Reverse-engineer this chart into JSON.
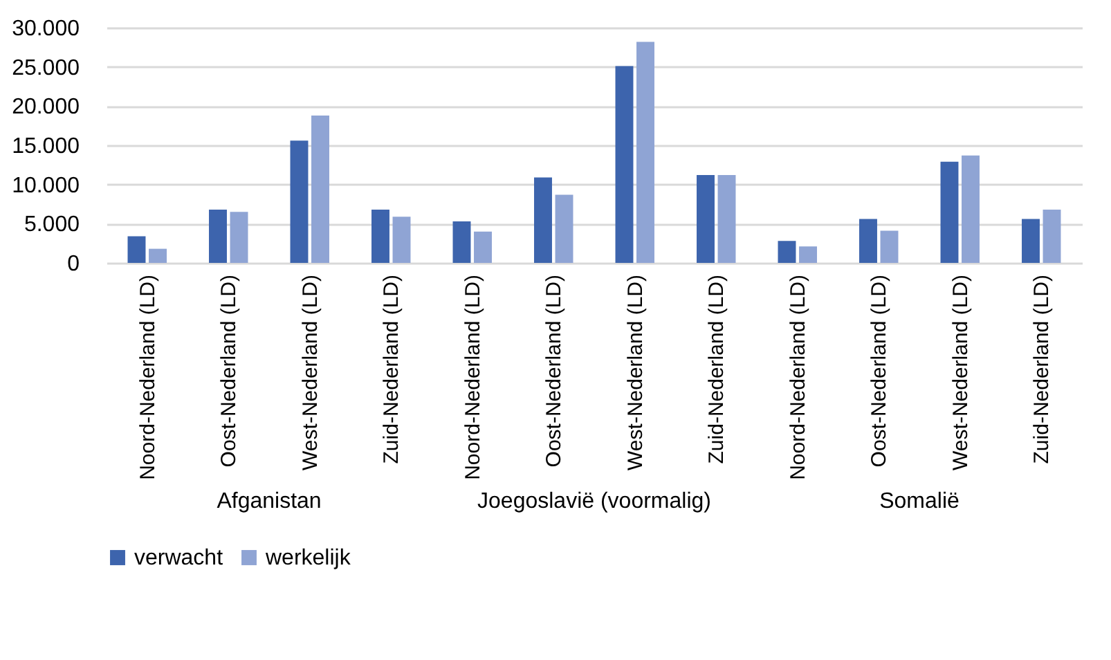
{
  "chart_data": {
    "type": "bar",
    "categories": [
      "Noord-Nederland (LD)",
      "Oost-Nederland (LD)",
      "West-Nederland (LD)",
      "Zuid-Nederland (LD)",
      "Noord-Nederland (LD)",
      "Oost-Nederland (LD)",
      "West-Nederland (LD)",
      "Zuid-Nederland (LD)",
      "Noord-Nederland (LD)",
      "Oost-Nederland (LD)",
      "West-Nederland (LD)",
      "Zuid-Nederland (LD)"
    ],
    "series": [
      {
        "name": "verwacht",
        "color": "#3d64ad",
        "values": [
          3400,
          6800,
          15600,
          6800,
          5300,
          10900,
          25100,
          11200,
          2800,
          5600,
          12900,
          5600
        ]
      },
      {
        "name": "werkelijk",
        "color": "#8fa4d4",
        "values": [
          1800,
          6500,
          18800,
          5900,
          4000,
          8700,
          28200,
          11200,
          2100,
          4100,
          13700,
          6800
        ]
      }
    ],
    "annotations": [
      "Afganistan",
      "Joegoslavië (voormalig)",
      "Somalië"
    ],
    "ylim": [
      0,
      30000
    ],
    "yticks": [
      0,
      {
        "value": 5000,
        "label": "5.000"
      },
      {
        "value": 10000,
        "label": "10.000"
      },
      {
        "value": 15000,
        "label": "15.000"
      },
      {
        "value": 20000,
        "label": "20.000"
      },
      {
        "value": 25000,
        "label": "25.000"
      },
      {
        "value": 30000,
        "label": "30.000"
      }
    ],
    "grid": "y",
    "legend": "bottom"
  }
}
